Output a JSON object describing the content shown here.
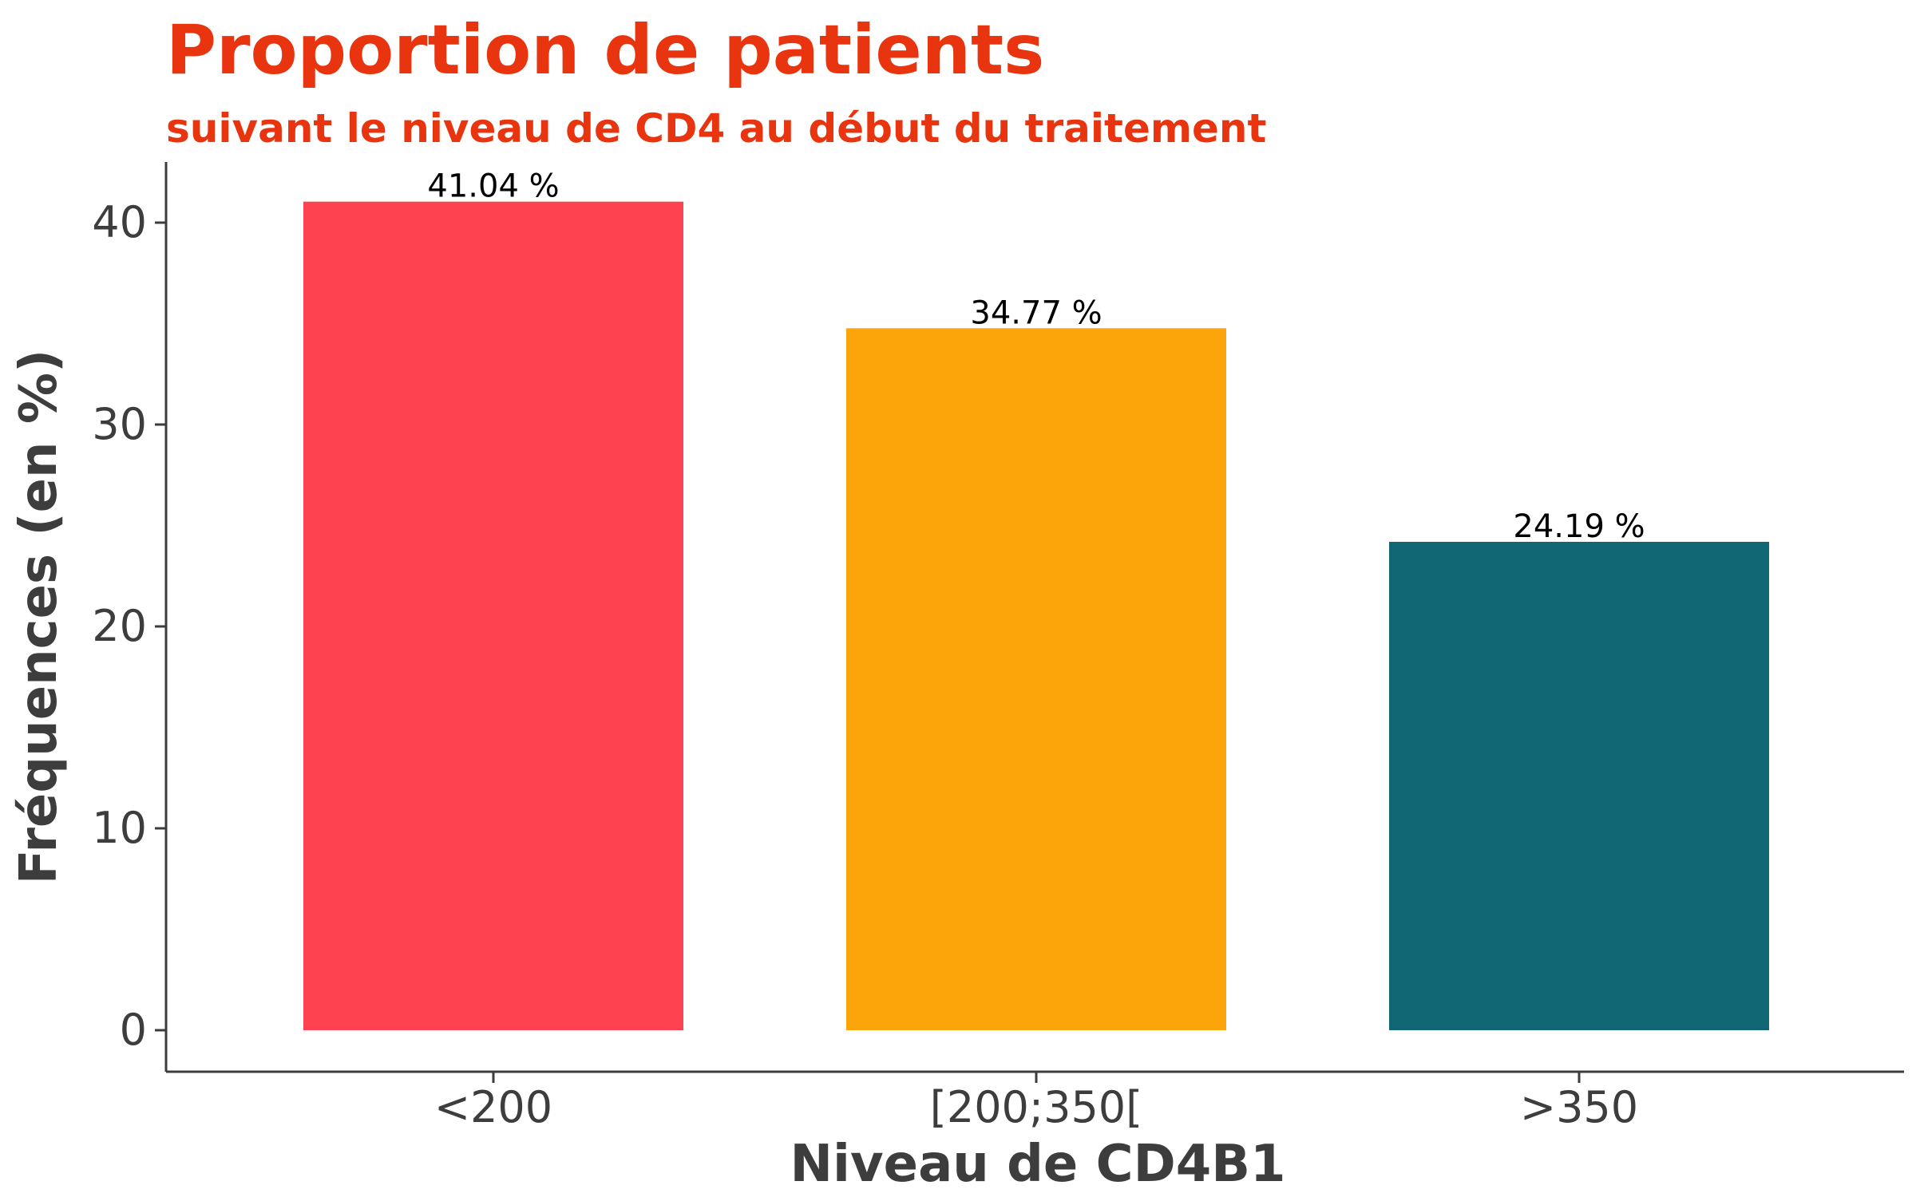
{
  "chart_data": {
    "type": "bar",
    "title": "Proportion de patients",
    "subtitle": "suivant le niveau de CD4 au début du traitement",
    "xlabel": "Niveau de CD4B1",
    "ylabel": "Fréquences (en %)",
    "categories": [
      "<200",
      "[200;350[",
      ">350"
    ],
    "values": [
      41.04,
      34.77,
      24.19
    ],
    "data_labels": [
      "41.04 %",
      "34.77 %",
      "24.19 %"
    ],
    "yticks": [
      "0",
      "10",
      "20",
      "30",
      "40"
    ],
    "ylim": [
      0,
      43
    ],
    "grid": false,
    "legend": "none",
    "colors": {
      "bars": [
        "#ff424f",
        "#fca50a",
        "#106773"
      ],
      "title": "#e8340f",
      "axis": "#3d3d3d",
      "text": "#3d3d3d",
      "data_label": "#000000"
    }
  }
}
